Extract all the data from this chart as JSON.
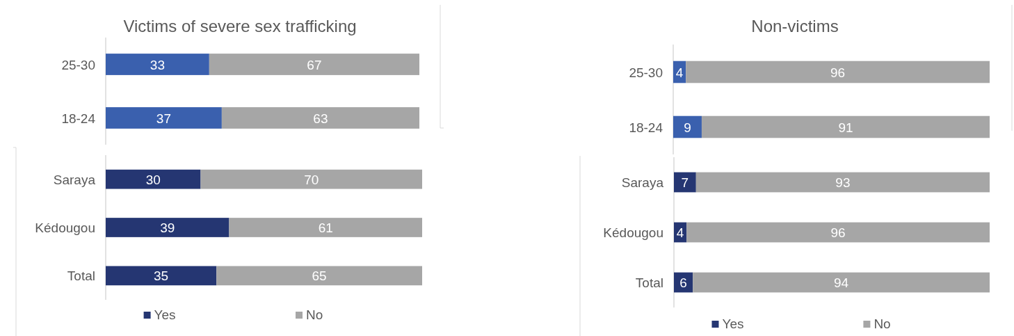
{
  "chart_data": [
    {
      "type": "bar",
      "orientation": "horizontal",
      "stacked": true,
      "title": "Victims of severe sex trafficking",
      "categories": [
        "25-30",
        "18-24"
      ],
      "series": [
        {
          "color": "#3a60ae",
          "values": [
            33,
            37
          ]
        },
        {
          "color": "#a6a6a6",
          "values": [
            67,
            63
          ]
        }
      ],
      "xlim": [
        0,
        100
      ],
      "data_labels": true,
      "tick_labels": "y"
    },
    {
      "type": "bar",
      "orientation": "horizontal",
      "stacked": true,
      "categories": [
        "Saraya",
        "Kédougou",
        "Total"
      ],
      "series": [
        {
          "name": "Yes",
          "color": "#253672",
          "values": [
            30,
            39,
            35
          ]
        },
        {
          "name": "No",
          "color": "#a6a6a6",
          "values": [
            70,
            61,
            65
          ]
        }
      ],
      "xlim": [
        0,
        100
      ],
      "data_labels": true,
      "tick_labels": "y",
      "legend": "bottom"
    },
    {
      "type": "bar",
      "orientation": "horizontal",
      "stacked": true,
      "title": "Non-victims",
      "categories": [
        "25-30",
        "18-24"
      ],
      "series": [
        {
          "color": "#3a60ae",
          "values": [
            4,
            9
          ]
        },
        {
          "color": "#a6a6a6",
          "values": [
            96,
            91
          ]
        }
      ],
      "xlim": [
        0,
        100
      ],
      "data_labels": true,
      "tick_labels": "y"
    },
    {
      "type": "bar",
      "orientation": "horizontal",
      "stacked": true,
      "categories": [
        "Saraya",
        "Kédougou",
        "Total"
      ],
      "series": [
        {
          "name": "Yes",
          "color": "#253672",
          "values": [
            7,
            4,
            6
          ]
        },
        {
          "name": "No",
          "color": "#a6a6a6",
          "values": [
            93,
            96,
            94
          ]
        }
      ],
      "xlim": [
        0,
        100
      ],
      "data_labels": true,
      "tick_labels": "y",
      "legend": "bottom"
    }
  ]
}
